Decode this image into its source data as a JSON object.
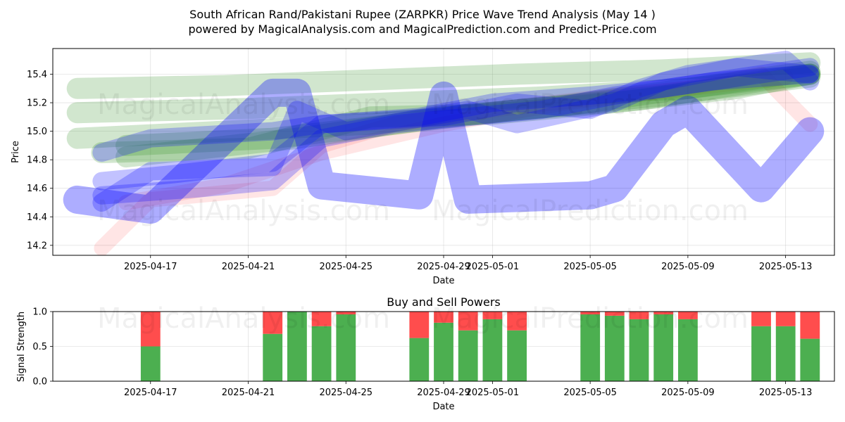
{
  "title_line1": "South African Rand/Pakistani Rupee (ZARPKR) Price Wave Trend Analysis (May 14 )",
  "title_line2": "powered by MagicalAnalysis.com and MagicalPrediction.com and Predict-Price.com",
  "watermarks": [
    "MagicalAnalysis.com",
    "MagicalPrediction.com"
  ],
  "colors": {
    "blue": "#0000ff",
    "green": "#2e8b22",
    "red": "#ff0000",
    "buy": "#4caf50",
    "sell": "#ff4d4d"
  },
  "chart_data": [
    {
      "type": "area",
      "xlabel": "Date",
      "ylabel": "Price",
      "x_range": [
        "2025-04-13",
        "2025-05-15"
      ],
      "ylim": [
        14.13,
        15.58
      ],
      "x_ticks": [
        "2025-04-17",
        "2025-04-21",
        "2025-04-25",
        "2025-04-29",
        "2025-05-01",
        "2025-05-05",
        "2025-05-09",
        "2025-05-13"
      ],
      "y_ticks": [
        "14.2",
        "14.4",
        "14.6",
        "14.8",
        "15.0",
        "15.2",
        "15.4"
      ],
      "grid": true,
      "series": [
        {
          "color": "blue",
          "dates": [
            "2025-04-14",
            "2025-04-17",
            "2025-04-22",
            "2025-04-23",
            "2025-04-24",
            "2025-04-28",
            "2025-04-29",
            "2025-04-30",
            "2025-05-05",
            "2025-05-06",
            "2025-05-08",
            "2025-05-09",
            "2025-05-12",
            "2025-05-14"
          ],
          "values": [
            14.52,
            14.45,
            15.27,
            15.27,
            14.62,
            14.55,
            15.25,
            14.52,
            14.55,
            14.6,
            15.05,
            15.15,
            14.6,
            15.0
          ]
        },
        {
          "color": "blue",
          "dates": [
            "2025-04-15",
            "2025-04-17",
            "2025-04-22",
            "2025-04-23",
            "2025-04-25",
            "2025-04-30",
            "2025-05-02",
            "2025-05-06",
            "2025-05-08",
            "2025-05-11",
            "2025-05-14"
          ],
          "values": [
            14.5,
            14.72,
            14.75,
            15.15,
            15.0,
            15.15,
            15.05,
            15.2,
            15.35,
            15.45,
            15.4
          ]
        },
        {
          "color": "blue",
          "dates": [
            "2025-04-15",
            "2025-04-17",
            "2025-04-22",
            "2025-04-24",
            "2025-04-28",
            "2025-05-01",
            "2025-05-05",
            "2025-05-08",
            "2025-05-12",
            "2025-05-14"
          ],
          "values": [
            14.85,
            14.95,
            15.0,
            15.05,
            15.1,
            15.2,
            15.25,
            15.3,
            15.4,
            15.45
          ]
        },
        {
          "color": "blue",
          "dates": [
            "2025-04-15",
            "2025-04-18",
            "2025-04-22",
            "2025-04-24",
            "2025-04-29",
            "2025-05-02",
            "2025-05-05",
            "2025-05-07",
            "2025-05-09",
            "2025-05-13",
            "2025-05-14"
          ],
          "values": [
            14.65,
            14.7,
            14.78,
            15.05,
            15.1,
            15.2,
            15.15,
            15.3,
            15.4,
            15.5,
            15.35
          ]
        },
        {
          "color": "blue",
          "dates": [
            "2025-04-15",
            "2025-04-19",
            "2025-04-22",
            "2025-04-24",
            "2025-04-27",
            "2025-04-30",
            "2025-05-03",
            "2025-05-06",
            "2025-05-10",
            "2025-05-14"
          ],
          "values": [
            14.55,
            14.6,
            14.65,
            14.95,
            15.05,
            15.1,
            15.15,
            15.25,
            15.35,
            15.4
          ]
        },
        {
          "color": "green",
          "dates": [
            "2025-04-14",
            "2025-04-20",
            "2025-04-26",
            "2025-05-02",
            "2025-05-08",
            "2025-05-14"
          ],
          "values": [
            15.3,
            15.32,
            15.36,
            15.4,
            15.43,
            15.48
          ]
        },
        {
          "color": "green",
          "dates": [
            "2025-04-14",
            "2025-04-20",
            "2025-04-26",
            "2025-05-02",
            "2025-05-08",
            "2025-05-14"
          ],
          "values": [
            14.95,
            15.0,
            15.05,
            15.15,
            15.25,
            15.38
          ]
        },
        {
          "color": "green",
          "dates": [
            "2025-04-15",
            "2025-04-21",
            "2025-04-26",
            "2025-05-01",
            "2025-05-06",
            "2025-05-11",
            "2025-05-14"
          ],
          "values": [
            14.85,
            14.88,
            15.1,
            15.12,
            15.2,
            15.3,
            15.4
          ]
        },
        {
          "color": "green",
          "dates": [
            "2025-04-14",
            "2025-04-21",
            "2025-04-27",
            "2025-05-03",
            "2025-05-09",
            "2025-05-14"
          ],
          "values": [
            15.13,
            15.16,
            15.2,
            15.24,
            15.3,
            15.4
          ]
        },
        {
          "color": "green",
          "dates": [
            "2025-04-16",
            "2025-04-22",
            "2025-04-27",
            "2025-05-02",
            "2025-05-07",
            "2025-05-12",
            "2025-05-14"
          ],
          "values": [
            14.9,
            14.95,
            15.05,
            15.15,
            15.22,
            15.35,
            15.4
          ]
        },
        {
          "color": "green",
          "dates": [
            "2025-04-16",
            "2025-04-23",
            "2025-04-29",
            "2025-05-04",
            "2025-05-09",
            "2025-05-14"
          ],
          "values": [
            14.82,
            14.95,
            15.1,
            15.18,
            15.3,
            15.42
          ]
        },
        {
          "color": "red",
          "dates": [
            "2025-04-15",
            "2025-04-17",
            "2025-04-22",
            "2025-04-24",
            "2025-04-27",
            "2025-05-01",
            "2025-05-06",
            "2025-05-09",
            "2025-05-12",
            "2025-05-14"
          ],
          "values": [
            14.18,
            14.52,
            14.6,
            14.9,
            15.05,
            15.15,
            15.25,
            15.3,
            15.4,
            15.05
          ]
        },
        {
          "color": "red",
          "dates": [
            "2025-04-16",
            "2025-04-20",
            "2025-04-24",
            "2025-04-29",
            "2025-05-04",
            "2025-05-09",
            "2025-05-13"
          ],
          "values": [
            14.5,
            14.62,
            14.85,
            15.05,
            15.2,
            15.3,
            15.38
          ]
        }
      ]
    },
    {
      "type": "bar",
      "title": "Buy and Sell Powers",
      "xlabel": "Date",
      "ylabel": "Signal Strength",
      "x_range": [
        "2025-04-13",
        "2025-05-15"
      ],
      "ylim": [
        0,
        1.0
      ],
      "x_ticks": [
        "2025-04-17",
        "2025-04-21",
        "2025-04-25",
        "2025-04-29",
        "2025-05-01",
        "2025-05-05",
        "2025-05-09",
        "2025-05-13"
      ],
      "y_ticks": [
        "0.0",
        "0.5",
        "1.0"
      ],
      "dates": [
        "2025-04-17",
        "2025-04-22",
        "2025-04-23",
        "2025-04-24",
        "2025-04-25",
        "2025-04-28",
        "2025-04-29",
        "2025-04-30",
        "2025-05-01",
        "2025-05-02",
        "2025-05-05",
        "2025-05-06",
        "2025-05-07",
        "2025-05-08",
        "2025-05-09",
        "2025-05-12",
        "2025-05-13",
        "2025-05-14"
      ],
      "series": [
        {
          "name": "Buy",
          "color": "buy",
          "values": [
            0.5,
            0.68,
            1.0,
            0.79,
            0.96,
            0.62,
            0.84,
            0.73,
            0.89,
            0.73,
            0.96,
            0.94,
            0.89,
            0.96,
            0.89,
            0.79,
            0.79,
            0.61
          ]
        },
        {
          "name": "Sell",
          "color": "sell",
          "values": [
            0.5,
            0.32,
            0.0,
            0.21,
            0.04,
            0.38,
            0.16,
            0.27,
            0.11,
            0.27,
            0.04,
            0.06,
            0.11,
            0.04,
            0.11,
            0.21,
            0.21,
            0.39
          ]
        }
      ]
    }
  ]
}
